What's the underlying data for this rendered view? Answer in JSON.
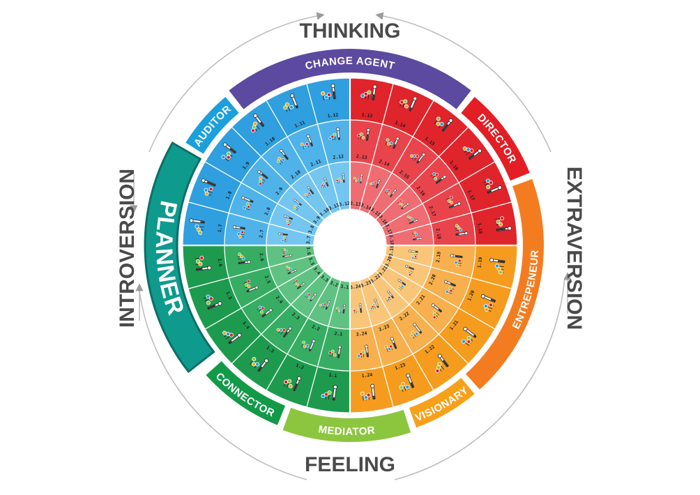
{
  "axes": {
    "top": "THINKING",
    "bottom": "FEELING",
    "left": "INTROVERSION",
    "right": "EXTRAVERSION"
  },
  "bands": [
    {
      "label": "CHANGE AGENT",
      "color": "#5b4aa0"
    },
    {
      "label": "DIRECTOR",
      "color": "#e31e24"
    },
    {
      "label": "ENTREPENEUR",
      "color": "#f47c20"
    },
    {
      "label": "VISIONARY",
      "color": "#f7a11a"
    },
    {
      "label": "MEDIATOR",
      "color": "#8cc63f"
    },
    {
      "label": "CONNECTOR",
      "color": "#129a48"
    },
    {
      "label": "PLANNER",
      "color": "#0f9a8e"
    },
    {
      "label": "AUDITOR",
      "color": "#1aa0dc"
    }
  ],
  "quadrant_colors": {
    "blue": [
      "#2f9fe0",
      "#4fb3ea",
      "#74c6f1"
    ],
    "red": [
      "#e0242b",
      "#e9444b",
      "#ef6d72"
    ],
    "orange": [
      "#f59c1f",
      "#f7b04d",
      "#f9c679"
    ],
    "green": [
      "#1e9a4e",
      "#37ad63",
      "#5fc282"
    ]
  },
  "icons": [
    "thermometer-icon",
    "bulb-icon"
  ],
  "dot_colors": [
    "#1aa0dc",
    "#e31e24",
    "#8cc63f",
    "#f7a11a"
  ],
  "cells": {
    "outer": [
      "1.1",
      "1.2",
      "1.3",
      "1.4",
      "1.5",
      "1.6",
      "1.7",
      "1.8",
      "1.9",
      "1.10",
      "1.11",
      "1.12",
      "1.13",
      "1.14",
      "1.15",
      "1.16",
      "1.17",
      "1.18",
      "1.19",
      "1.20",
      "1.21",
      "1.22",
      "1.23",
      "1.24"
    ],
    "middle": [
      "2.1",
      "2.2",
      "2.3",
      "2.4",
      "2.5",
      "2.6",
      "2.7",
      "2.8",
      "2.9",
      "2.10",
      "2.11",
      "2.12",
      "2.13",
      "2.14",
      "2.15",
      "2.16",
      "2.17",
      "2.18",
      "2.19",
      "2.20",
      "2.21",
      "2.22",
      "2.23",
      "2.24"
    ],
    "inner": [
      "3.1",
      "3.2",
      "3.3",
      "3.4",
      "3.5",
      "3.6",
      "3.7",
      "3.8",
      "3.9",
      "3.10",
      "3.11",
      "3.12",
      "3.13",
      "3.14",
      "3.15",
      "3.16",
      "3.17",
      "3.18",
      "3.19",
      "3.20",
      "3.21",
      "3.22",
      "3.23",
      "3.24"
    ]
  }
}
